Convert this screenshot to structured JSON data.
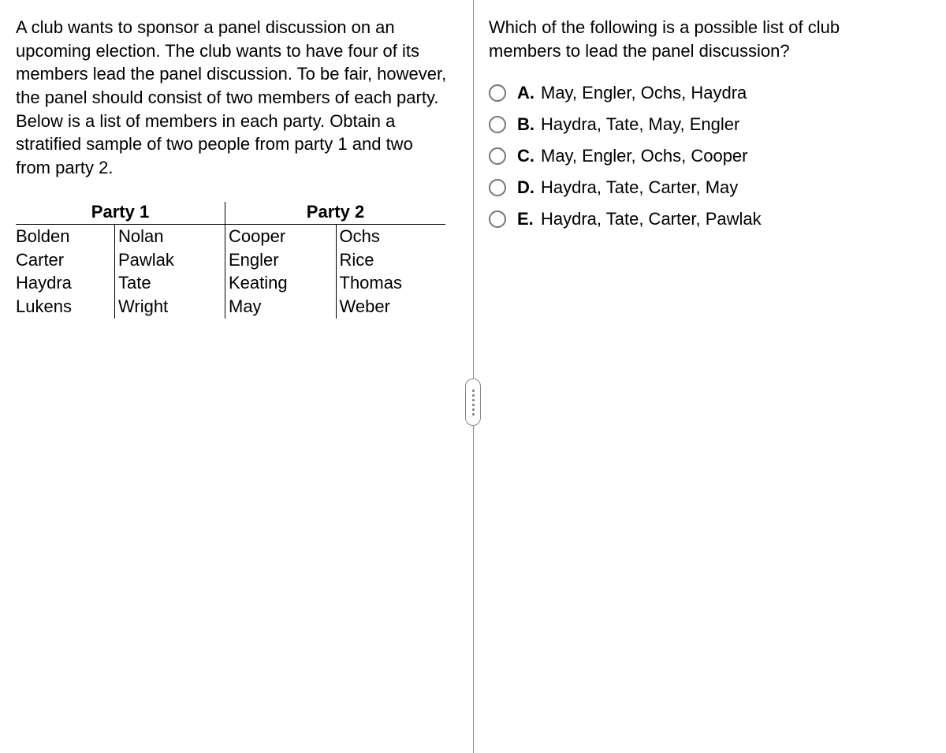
{
  "problem_text": "A club wants to sponsor a panel discussion on an upcoming election. The club wants to have four of its members lead the panel discussion. To be fair, however, the panel should consist of two members of each party. Below is a list of members in each party. Obtain a stratified sample of two people from party 1 and two from party 2.",
  "party_table": {
    "party1": {
      "header": "Party 1",
      "col1": [
        "Bolden",
        "Carter",
        "Haydra",
        "Lukens"
      ],
      "col2": [
        "Nolan",
        "Pawlak",
        "Tate",
        "Wright"
      ]
    },
    "party2": {
      "header": "Party 2",
      "col1": [
        "Cooper",
        "Engler",
        "Keating",
        "May"
      ],
      "col2": [
        "Ochs",
        "Rice",
        "Thomas",
        "Weber"
      ]
    }
  },
  "question_text": "Which of the following is a possible list of club members to lead the panel discussion?",
  "choices": [
    {
      "letter": "A.",
      "text": "May, Engler, Ochs, Haydra"
    },
    {
      "letter": "B.",
      "text": "Haydra, Tate, May, Engler"
    },
    {
      "letter": "C.",
      "text": "May, Engler, Ochs, Cooper"
    },
    {
      "letter": "D.",
      "text": "Haydra, Tate, Carter, May"
    },
    {
      "letter": "E.",
      "text": "Haydra, Tate, Carter, Pawlak"
    }
  ],
  "colors": {
    "radio_border": "#767676",
    "divider": "#888888",
    "text": "#000000",
    "background": "#ffffff"
  }
}
